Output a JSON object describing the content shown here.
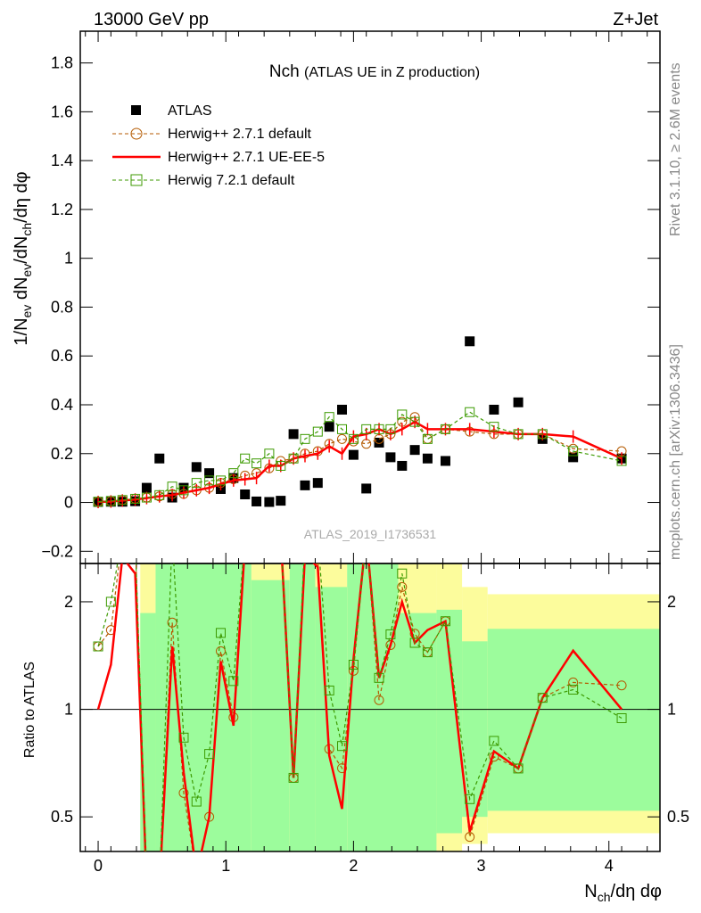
{
  "chart_data": {
    "type": "scatter",
    "header_left": "13000 GeV pp",
    "header_right": "Z+Jet",
    "title_main": "Nch",
    "title_sub": "(ATLAS UE in Z production)",
    "ylabel": "1/N_ev dN_ev/dN_ch/dη dφ",
    "ylabel_parts": {
      "a": "1/N",
      "b": "ev",
      "c": " dN",
      "d": "ev",
      "e": "/dN",
      "f": "ch",
      "g": "/dη dφ"
    },
    "xlabel_parts": {
      "a": "N",
      "b": "ch",
      "c": "/dη dφ"
    },
    "ratio_ylabel": "Ratio to ATLAS",
    "watermark": "ATLAS_2019_I1736531",
    "side_text_1": "Rivet 3.1.10, ≥ 2.6M events",
    "side_text_2": "mcplots.cern.ch [arXiv:1306.3436]",
    "xlim": [
      -0.14,
      4.4
    ],
    "ylim": [
      -0.25,
      1.93
    ],
    "ratio_ylim": [
      0.4,
      2.56
    ],
    "xticks": [
      "0",
      "1",
      "2",
      "3",
      "4"
    ],
    "yticks": [
      "−0.2",
      "0",
      "0.2",
      "0.4",
      "0.6",
      "0.8",
      "1",
      "1.2",
      "1.4",
      "1.6",
      "1.8"
    ],
    "ytick_values": [
      -0.2,
      0,
      0.2,
      0.4,
      0.6,
      0.8,
      1,
      1.2,
      1.4,
      1.6,
      1.8
    ],
    "ratio_yticks": [
      "0.5",
      "1",
      "2"
    ],
    "ratio_ytick_values": [
      0.5,
      1,
      2
    ],
    "x": [
      0,
      0.1,
      0.19,
      0.29,
      0.38,
      0.48,
      0.58,
      0.67,
      0.77,
      0.87,
      0.96,
      1.06,
      1.15,
      1.24,
      1.34,
      1.43,
      1.53,
      1.62,
      1.72,
      1.81,
      1.91,
      2.0,
      2.1,
      2.2,
      2.29,
      2.38,
      2.48,
      2.58,
      2.72,
      2.91,
      3.1,
      3.29,
      3.48,
      3.72,
      4.1
    ],
    "series": [
      {
        "name": "ATLAS",
        "color": "#000000",
        "marker": "square-filled",
        "values": [
          0.002,
          0.003,
          0.003,
          0.005,
          0.06,
          0.18,
          0.02,
          0.06,
          0.145,
          0.12,
          0.055,
          0.1,
          0.033,
          0.004,
          0.002,
          0.007,
          0.28,
          0.07,
          0.08,
          0.31,
          0.38,
          0.195,
          0.057,
          0.245,
          0.185,
          0.15,
          0.215,
          0.18,
          0.17,
          0.66,
          0.38,
          0.41,
          0.26,
          0.185,
          0.18
        ]
      },
      {
        "name": "Herwig++ 2.7.1 default",
        "color": "#b45a00",
        "marker": "circle-open",
        "dashed": true,
        "values": [
          0.003,
          0.005,
          0.01,
          0.015,
          0.02,
          0.025,
          0.035,
          0.035,
          0.05,
          0.06,
          0.08,
          0.095,
          0.11,
          0.12,
          0.14,
          0.17,
          0.18,
          0.2,
          0.21,
          0.24,
          0.26,
          0.25,
          0.24,
          0.26,
          0.28,
          0.33,
          0.35,
          0.26,
          0.3,
          0.29,
          0.28,
          0.28,
          0.28,
          0.22,
          0.21
        ]
      },
      {
        "name": "Herwig++ 2.7.1 UE-EE-5",
        "color": "#ff0000",
        "marker": "none",
        "dashed": false,
        "values": [
          0.002,
          0.004,
          0.008,
          0.012,
          0.018,
          0.025,
          0.03,
          0.04,
          0.05,
          0.06,
          0.075,
          0.09,
          0.095,
          0.1,
          0.15,
          0.15,
          0.18,
          0.19,
          0.2,
          0.23,
          0.2,
          0.27,
          0.28,
          0.3,
          0.28,
          0.3,
          0.33,
          0.3,
          0.3,
          0.3,
          0.29,
          0.28,
          0.28,
          0.27,
          0.18
        ]
      },
      {
        "name": "Herwig 7.2.1 default",
        "color": "#3c9a00",
        "marker": "square-open",
        "dashed": true,
        "values": [
          0.003,
          0.006,
          0.01,
          0.015,
          0.02,
          0.03,
          0.065,
          0.05,
          0.08,
          0.09,
          0.09,
          0.12,
          0.18,
          0.16,
          0.2,
          0.15,
          0.18,
          0.26,
          0.29,
          0.35,
          0.3,
          0.26,
          0.3,
          0.3,
          0.3,
          0.36,
          0.33,
          0.26,
          0.3,
          0.37,
          0.31,
          0.28,
          0.28,
          0.21,
          0.17
        ]
      }
    ],
    "ratio_bands": [
      {
        "x": [
          0.33,
          0.45
        ],
        "inner": [
          0.3,
          1.86
        ],
        "outer": [
          0.3,
          3
        ]
      },
      {
        "x": [
          0.45,
          1.2
        ],
        "inner": [
          0.3,
          3
        ],
        "outer": [
          0.3,
          3
        ]
      },
      {
        "x": [
          1.2,
          1.5
        ],
        "inner": [
          0.3,
          2.3
        ],
        "outer": [
          0.3,
          3
        ]
      },
      {
        "x": [
          1.5,
          1.7
        ],
        "inner": [
          0.3,
          3
        ],
        "outer": [
          0.3,
          3
        ]
      },
      {
        "x": [
          1.7,
          1.95
        ],
        "inner": [
          0.3,
          2.2
        ],
        "outer": [
          0.3,
          3
        ]
      },
      {
        "x": [
          1.95,
          2.35
        ],
        "inner": [
          0.3,
          3
        ],
        "outer": [
          0.3,
          3
        ]
      },
      {
        "x": [
          2.35,
          2.65
        ],
        "inner": [
          0.3,
          1.86
        ],
        "outer": [
          0.3,
          3
        ]
      },
      {
        "x": [
          2.65,
          2.85
        ],
        "inner": [
          0.45,
          1.9
        ],
        "outer": [
          0.3,
          3
        ]
      },
      {
        "x": [
          2.85,
          3.05
        ],
        "inner": [
          0.5,
          1.55
        ],
        "outer": [
          0.42,
          2.2
        ]
      },
      {
        "x": [
          3.05,
          4.4
        ],
        "inner": [
          0.52,
          1.68
        ],
        "outer": [
          0.45,
          2.1
        ]
      }
    ],
    "band_colors": {
      "inner": "#9cfc9c",
      "outer": "#fcfc9c"
    }
  }
}
